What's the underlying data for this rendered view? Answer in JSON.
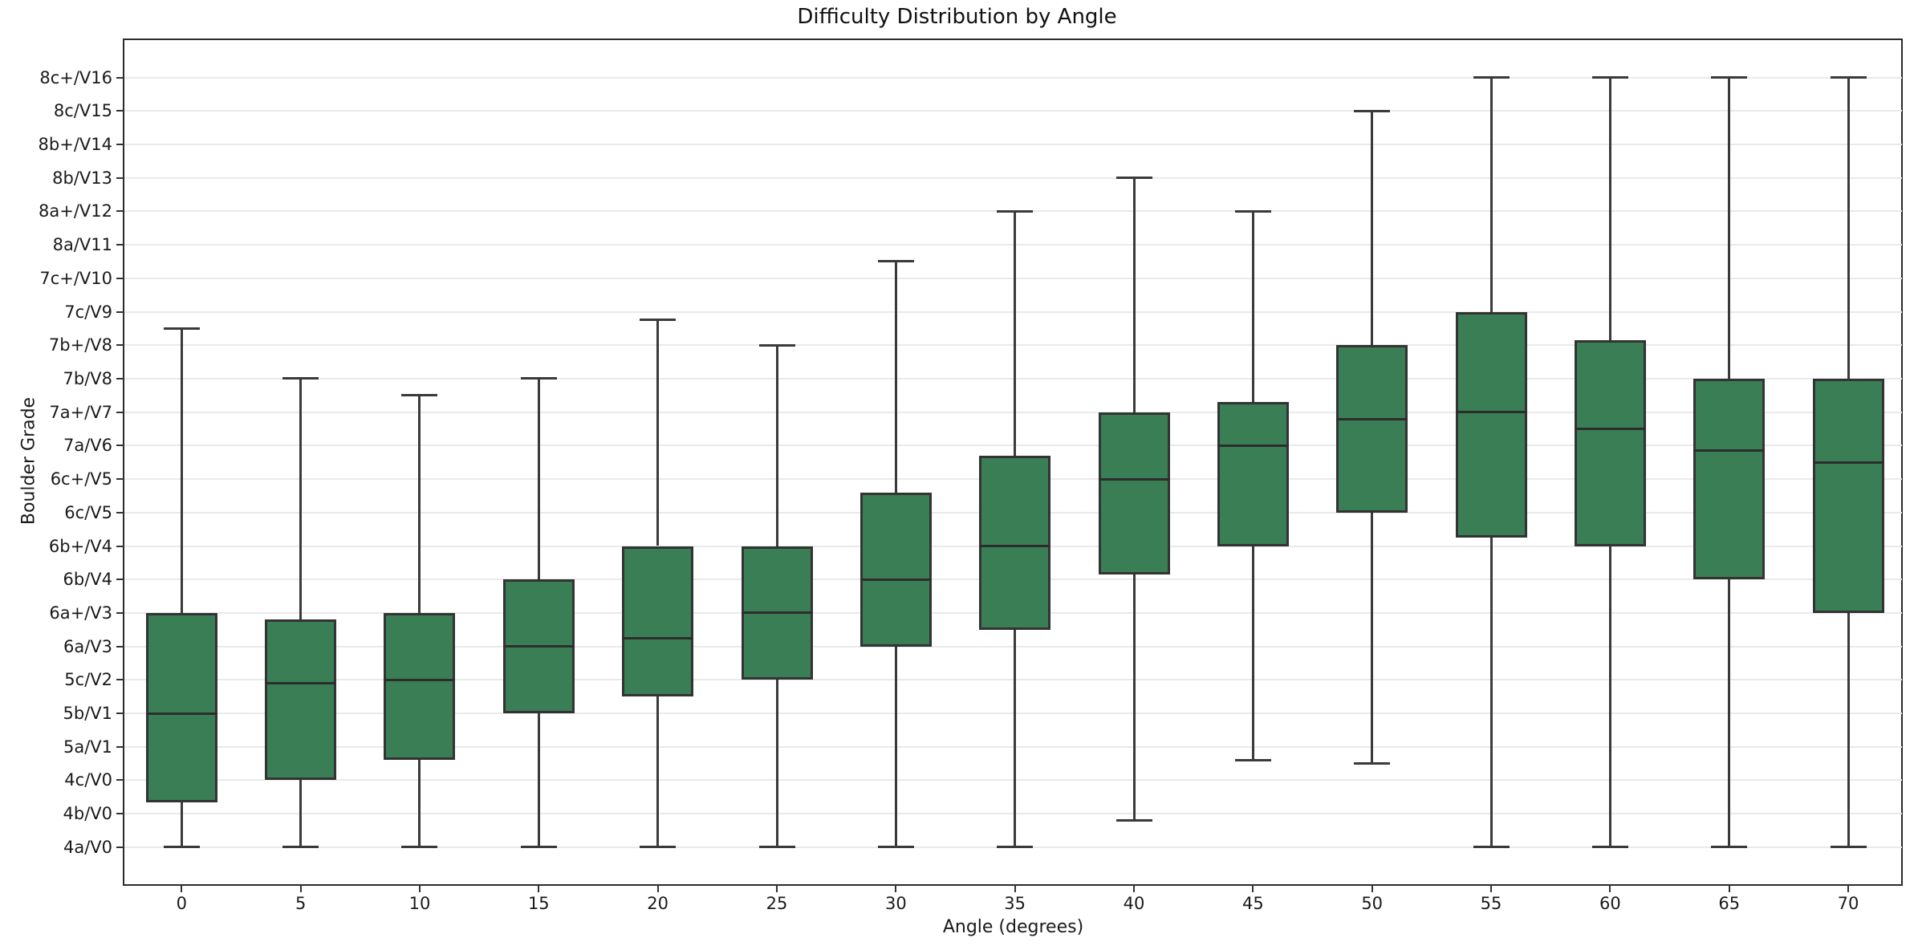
{
  "chart_data": {
    "type": "box",
    "title": "Difficulty Distribution by Angle",
    "xlabel": "Angle (degrees)",
    "ylabel": "Boulder Grade",
    "x_ticklabels": [
      "0",
      "5",
      "10",
      "15",
      "20",
      "25",
      "30",
      "35",
      "40",
      "45",
      "50",
      "55",
      "60",
      "65",
      "70"
    ],
    "y_ticklabels": [
      "4a/V0",
      "4b/V0",
      "4c/V0",
      "5a/V1",
      "5b/V1",
      "5c/V2",
      "6a/V3",
      "6a+/V3",
      "6b/V4",
      "6b+/V4",
      "6c/V5",
      "6c+/V5",
      "7a/V6",
      "7a+/V7",
      "7b/V8",
      "7b+/V8",
      "7c/V9",
      "7c+/V10",
      "8a/V11",
      "8a+/V12",
      "8b/V13",
      "8b+/V14",
      "8c/V15",
      "8c+/V16"
    ],
    "y_unit": "grade index (0 = 4a/V0 ... 23 = 8c+/V16)",
    "ylim": [
      -1.15,
      24.2
    ],
    "grid": "horizontal",
    "legend": false,
    "series": [
      {
        "angle": 0,
        "whisker_low": 0,
        "q1": 1.35,
        "median": 4.0,
        "q3": 7.0,
        "whisker_high": 15.5
      },
      {
        "angle": 5,
        "whisker_low": 0,
        "q1": 2.0,
        "median": 4.9,
        "q3": 6.8,
        "whisker_high": 14.0
      },
      {
        "angle": 10,
        "whisker_low": 0,
        "q1": 2.6,
        "median": 5.0,
        "q3": 7.0,
        "whisker_high": 13.5
      },
      {
        "angle": 15,
        "whisker_low": 0,
        "q1": 4.0,
        "median": 6.0,
        "q3": 8.0,
        "whisker_high": 14.0
      },
      {
        "angle": 20,
        "whisker_low": 0,
        "q1": 4.5,
        "median": 6.25,
        "q3": 9.0,
        "whisker_high": 15.75
      },
      {
        "angle": 25,
        "whisker_low": 0,
        "q1": 5.0,
        "median": 7.0,
        "q3": 9.0,
        "whisker_high": 15.0
      },
      {
        "angle": 30,
        "whisker_low": 0,
        "q1": 6.0,
        "median": 8.0,
        "q3": 10.6,
        "whisker_high": 17.5
      },
      {
        "angle": 35,
        "whisker_low": 0,
        "q1": 6.5,
        "median": 9.0,
        "q3": 11.7,
        "whisker_high": 19.0
      },
      {
        "angle": 40,
        "whisker_low": 0.8,
        "q1": 8.15,
        "median": 11.0,
        "q3": 13.0,
        "whisker_high": 20.0
      },
      {
        "angle": 45,
        "whisker_low": 2.6,
        "q1": 9.0,
        "median": 12.0,
        "q3": 13.3,
        "whisker_high": 19.0
      },
      {
        "angle": 50,
        "whisker_low": 2.5,
        "q1": 10.0,
        "median": 12.8,
        "q3": 15.0,
        "whisker_high": 22.0
      },
      {
        "angle": 55,
        "whisker_low": 0,
        "q1": 9.25,
        "median": 13.0,
        "q3": 16.0,
        "whisker_high": 23.0
      },
      {
        "angle": 60,
        "whisker_low": 0,
        "q1": 9.0,
        "median": 12.5,
        "q3": 15.15,
        "whisker_high": 23.0
      },
      {
        "angle": 65,
        "whisker_low": 0,
        "q1": 8.0,
        "median": 11.85,
        "q3": 14.0,
        "whisker_high": 23.0
      },
      {
        "angle": 70,
        "whisker_low": 0,
        "q1": 7.0,
        "median": 11.5,
        "q3": 14.0,
        "whisker_high": 23.0
      }
    ],
    "colors": {
      "box_fill": "#3A7E55",
      "box_edge": "#333333",
      "whisker": "#3a3a3a",
      "median": "#2d2d2d",
      "grid": "#eaeaea",
      "spine": "#2b2b2b",
      "background": "#ffffff",
      "text": "#1a1a1a"
    }
  }
}
